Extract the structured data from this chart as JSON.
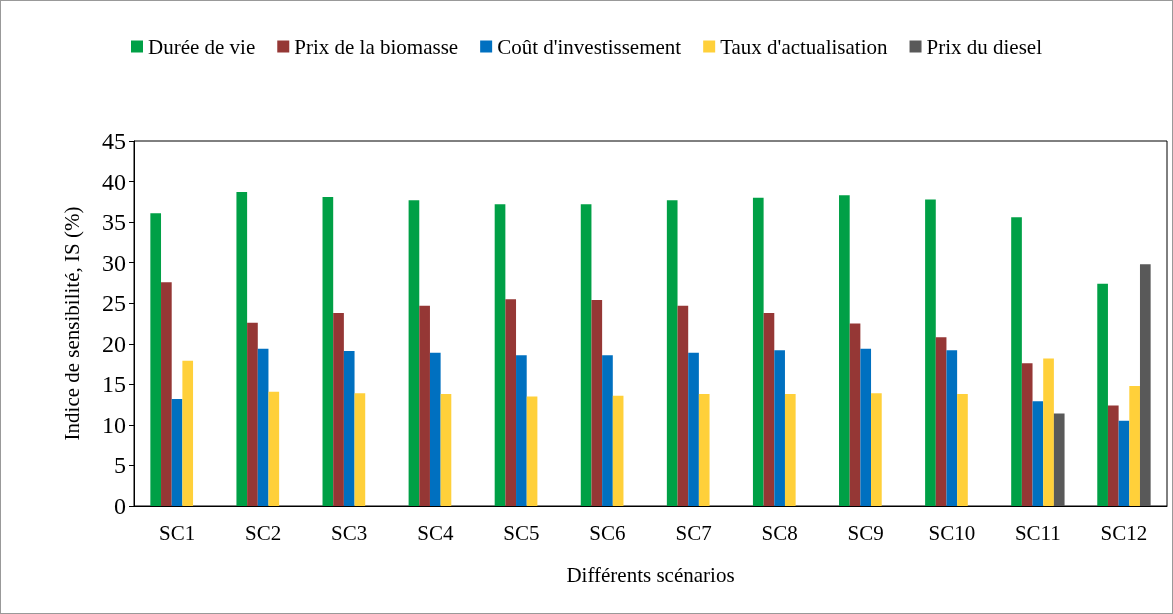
{
  "chart_data": {
    "type": "bar",
    "xlabel": "Différents scénarios",
    "ylabel": "Indice de sensibilité, IS (%)",
    "categories": [
      "SC1",
      "SC2",
      "SC3",
      "SC4",
      "SC5",
      "SC6",
      "SC7",
      "SC8",
      "SC9",
      "SC10",
      "SC11",
      "SC12"
    ],
    "series": [
      {
        "name": "Durée de vie",
        "color": "#00a046",
        "values": [
          36.1,
          38.7,
          38.1,
          37.7,
          37.2,
          37.2,
          37.7,
          38.0,
          38.3,
          37.8,
          35.6,
          27.4
        ]
      },
      {
        "name": "Prix de la biomasse",
        "color": "#953735",
        "values": [
          27.6,
          22.6,
          23.8,
          24.7,
          25.5,
          25.4,
          24.7,
          23.8,
          22.5,
          20.8,
          17.6,
          12.4
        ]
      },
      {
        "name": "Coût d'investissement",
        "color": "#0070c0",
        "values": [
          13.2,
          19.4,
          19.1,
          18.9,
          18.6,
          18.6,
          18.9,
          19.2,
          19.4,
          19.2,
          12.9,
          10.5
        ]
      },
      {
        "name": "Taux d'actualisation",
        "color": "#ffd03a",
        "values": [
          17.9,
          14.1,
          13.9,
          13.8,
          13.5,
          13.6,
          13.8,
          13.8,
          13.9,
          13.8,
          18.2,
          14.8
        ]
      },
      {
        "name": "Prix du diesel",
        "color": "#595959",
        "values": [
          null,
          null,
          null,
          null,
          null,
          null,
          null,
          null,
          null,
          null,
          11.4,
          29.8
        ]
      }
    ],
    "ylim": [
      0,
      45
    ],
    "yticks": [
      0,
      5,
      10,
      15,
      20,
      25,
      30,
      35,
      40,
      45
    ],
    "grid": false,
    "legend": "top"
  }
}
